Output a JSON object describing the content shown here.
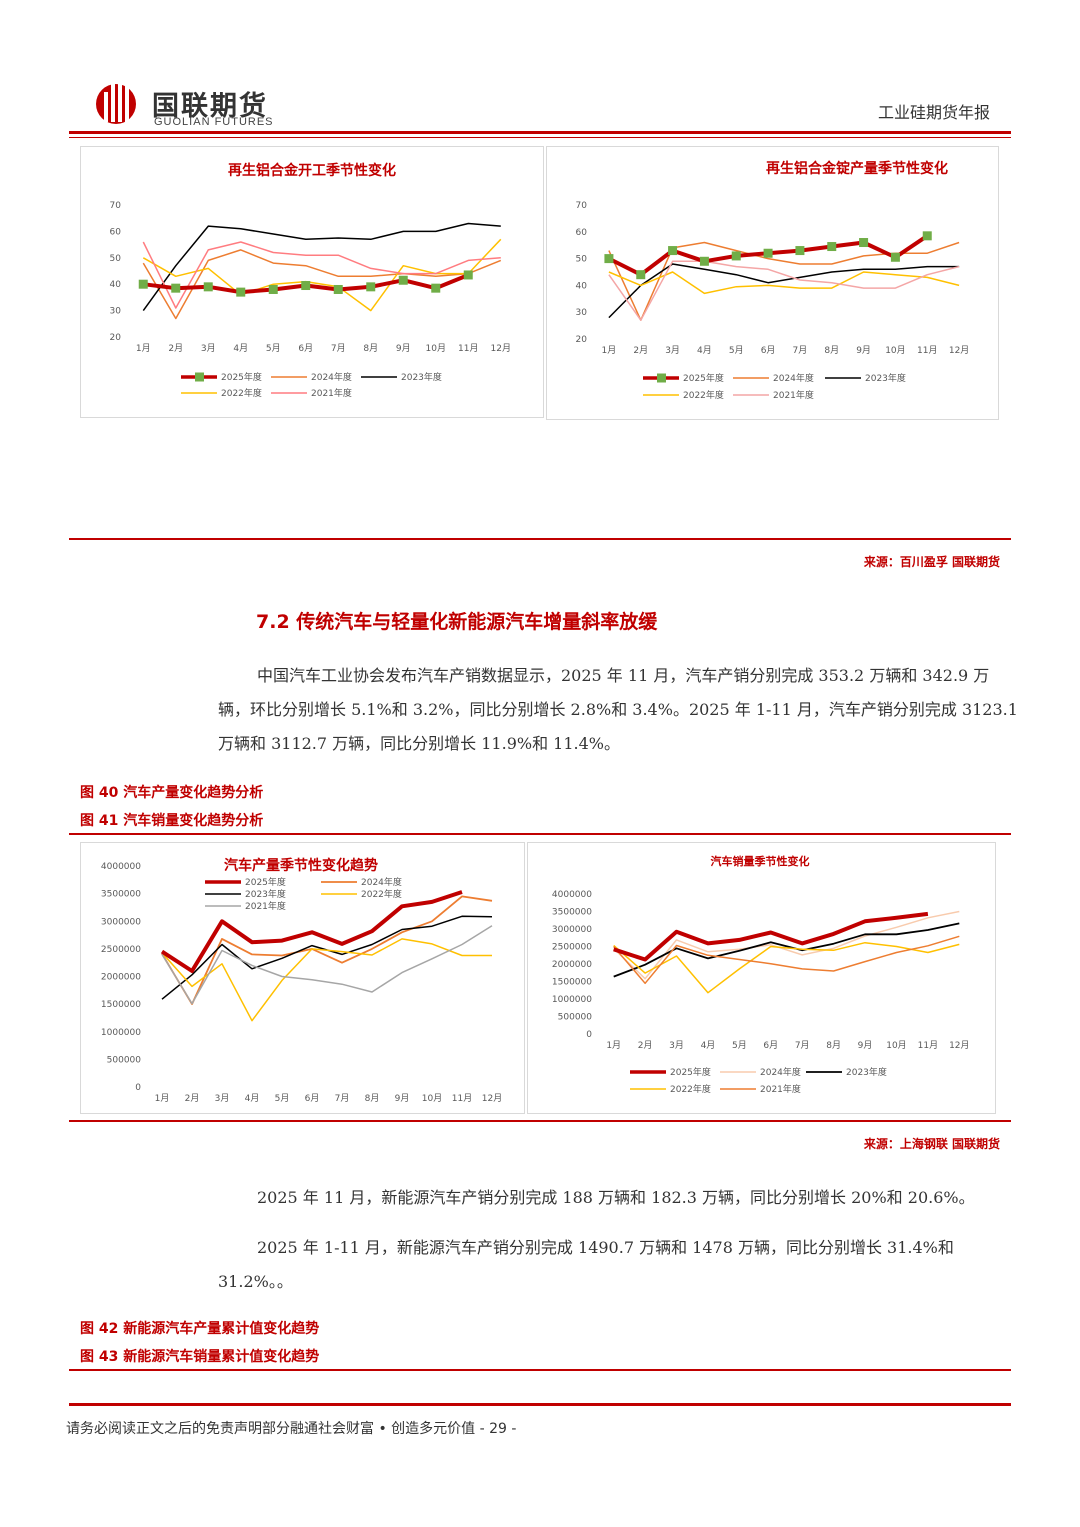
{
  "header": {
    "brand_cn": "国联期货",
    "brand_en": "GUOLIAN FUTURES",
    "doc_title": "工业硅期货年报"
  },
  "colors": {
    "accent": "#c00000",
    "s2025": "#c00000",
    "s2024": "#ed7d31",
    "s2023": "#000000",
    "s2022": "#ffc000",
    "s2021": "#ff7c80",
    "marker": "#70ad47",
    "gray": "#a6a6a6",
    "peach": "#f8cbad"
  },
  "source_top": "来源：百川盈孚  国联期货",
  "section_heading": "7.2 传统汽车与轻量化新能源汽车增量斜率放缓",
  "paragraph1": "中国汽车工业协会发布汽车产销数据显示，2025 年 11 月，汽车产销分别完成 353.2 万辆和 342.9 万辆，环比分别增长 5.1%和 3.2%，同比分别增长 2.8%和 3.4%。2025 年 1-11 月，汽车产销分别完成 3123.1 万辆和 3112.7 万辆，同比分别增长 11.9%和 11.4%。",
  "fig40": "图  40 汽车产量变化趋势分析",
  "fig41": "图  41  汽车销量变化趋势分析",
  "source_mid": "来源：上海钢联  国联期货",
  "paragraph2": "2025 年 11 月，新能源汽车产销分别完成 188 万辆和 182.3 万辆，同比分别增长 20%和 20.6%。",
  "paragraph3": "2025 年 1-11 月，新能源汽车产销分别完成 1490.7 万辆和 1478 万辆，同比分别增长 31.4%和 31.2%。。",
  "fig42": "图  42 新能源汽车产量累计值变化趋势",
  "fig43": "图  43 新能源汽车销量累计值变化趋势",
  "footer": "请务必阅读正文之后的免责声明部分融通社会财富 • 创造多元价值 - 29 -",
  "chart_data": [
    {
      "type": "line",
      "title": "再生铝合金开工季节性变化",
      "categories": [
        "1月",
        "2月",
        "3月",
        "4月",
        "5月",
        "6月",
        "7月",
        "8月",
        "9月",
        "10月",
        "11月",
        "12月"
      ],
      "ylim": [
        20,
        70
      ],
      "yticks": [
        20,
        30,
        40,
        50,
        60,
        70
      ],
      "series": [
        {
          "name": "2025年度",
          "color": "#c00000",
          "width": 4,
          "markers": true,
          "values": [
            40,
            38.5,
            39,
            37,
            38,
            39.5,
            38,
            39,
            41.5,
            38.5,
            43.5,
            null
          ]
        },
        {
          "name": "2024年度",
          "color": "#ed7d31",
          "width": 1.5,
          "values": [
            48,
            27,
            49,
            53,
            48,
            47,
            43,
            43,
            44,
            43,
            44,
            49
          ]
        },
        {
          "name": "2023年度",
          "color": "#000000",
          "width": 1.5,
          "values": [
            30,
            47,
            62,
            61,
            59,
            57,
            57.5,
            57,
            60,
            60,
            63,
            62
          ]
        },
        {
          "name": "2022年度",
          "color": "#ffc000",
          "width": 1.5,
          "values": [
            50,
            43,
            46,
            36,
            40,
            41,
            39,
            30,
            47,
            44,
            44,
            57
          ]
        },
        {
          "name": "2021年度",
          "color": "#ff7c80",
          "width": 1.5,
          "values": [
            56,
            31,
            53,
            56,
            52,
            51,
            51,
            46,
            44,
            44,
            49,
            50
          ]
        }
      ]
    },
    {
      "type": "line",
      "title": "再生铝合金锭产量季节性变化",
      "categories": [
        "1月",
        "2月",
        "3月",
        "4月",
        "5月",
        "6月",
        "7月",
        "8月",
        "9月",
        "10月",
        "11月",
        "12月"
      ],
      "ylim": [
        20,
        70
      ],
      "yticks": [
        20,
        30,
        40,
        50,
        60,
        70
      ],
      "series": [
        {
          "name": "2025年度",
          "color": "#c00000",
          "width": 4,
          "markers": true,
          "values": [
            50,
            44,
            53,
            49,
            51,
            52,
            53,
            54.5,
            56,
            50.5,
            58.5,
            null
          ]
        },
        {
          "name": "2024年度",
          "color": "#ed7d31",
          "width": 1.5,
          "values": [
            53,
            27,
            54,
            56,
            53,
            50,
            48,
            48,
            51,
            52,
            52,
            56
          ]
        },
        {
          "name": "2023年度",
          "color": "#000000",
          "width": 1.5,
          "values": [
            28,
            40,
            48,
            46,
            44,
            41,
            43,
            45,
            46,
            46,
            47,
            47
          ]
        },
        {
          "name": "2022年度",
          "color": "#ffc000",
          "width": 1.5,
          "values": [
            45,
            40,
            45,
            37,
            39.5,
            40,
            39,
            39,
            45,
            44,
            43,
            40
          ]
        },
        {
          "name": "2021年度",
          "color": "#f4a6a6",
          "width": 1.5,
          "values": [
            44,
            27,
            49,
            49,
            47,
            46,
            42,
            41,
            39,
            39,
            44,
            47
          ]
        }
      ]
    },
    {
      "type": "line",
      "title": "汽车产量季节性变化趋势",
      "categories": [
        "1月",
        "2月",
        "3月",
        "4月",
        "5月",
        "6月",
        "7月",
        "8月",
        "9月",
        "10月",
        "11月",
        "12月"
      ],
      "ylim": [
        0,
        4000000
      ],
      "yticks": [
        0,
        500000,
        1000000,
        1500000,
        2000000,
        2500000,
        3000000,
        3500000,
        4000000
      ],
      "series": [
        {
          "name": "2025年度",
          "color": "#c00000",
          "width": 4,
          "values": [
            2450000,
            2100000,
            3000000,
            2620000,
            2650000,
            2800000,
            2590000,
            2820000,
            3270000,
            3350000,
            3530000,
            null
          ]
        },
        {
          "name": "2024年度",
          "color": "#ed7d31",
          "width": 1.8,
          "values": [
            2410000,
            1500000,
            2680000,
            2400000,
            2380000,
            2500000,
            2250000,
            2500000,
            2800000,
            3000000,
            3450000,
            3370000
          ]
        },
        {
          "name": "2023年度",
          "color": "#000000",
          "width": 1.5,
          "values": [
            1590000,
            2030000,
            2580000,
            2140000,
            2330000,
            2560000,
            2400000,
            2580000,
            2850000,
            2910000,
            3090000,
            3080000
          ]
        },
        {
          "name": "2022年度",
          "color": "#ffc000",
          "width": 1.5,
          "values": [
            2430000,
            1820000,
            2230000,
            1200000,
            1930000,
            2500000,
            2450000,
            2390000,
            2680000,
            2590000,
            2380000,
            2380000
          ]
        },
        {
          "name": "2021年度",
          "color": "#a6a6a6",
          "width": 1.5,
          "values": [
            2400000,
            1510000,
            2470000,
            2200000,
            2000000,
            1940000,
            1860000,
            1720000,
            2070000,
            2320000,
            2580000,
            2920000
          ]
        }
      ]
    },
    {
      "type": "line",
      "title": "汽车销量季节性变化",
      "categories": [
        "1月",
        "2月",
        "3月",
        "4月",
        "5月",
        "6月",
        "7月",
        "8月",
        "9月",
        "10月",
        "11月",
        "12月"
      ],
      "ylim": [
        0,
        4000000
      ],
      "yticks": [
        0,
        500000,
        1000000,
        1500000,
        2000000,
        2500000,
        3000000,
        3500000,
        4000000
      ],
      "series": [
        {
          "name": "2025年度",
          "color": "#c00000",
          "width": 4,
          "values": [
            2420000,
            2130000,
            2920000,
            2590000,
            2690000,
            2900000,
            2590000,
            2860000,
            3220000,
            3320000,
            3430000,
            null
          ]
        },
        {
          "name": "2024年度",
          "color": "#f8cbad",
          "width": 1.5,
          "values": [
            2440000,
            1580000,
            2690000,
            2350000,
            2420000,
            2550000,
            2260000,
            2450000,
            2800000,
            3050000,
            3320000,
            3500000
          ]
        },
        {
          "name": "2023年度",
          "color": "#000000",
          "width": 1.8,
          "values": [
            1640000,
            1980000,
            2450000,
            2160000,
            2380000,
            2620000,
            2390000,
            2580000,
            2850000,
            2850000,
            2970000,
            3160000
          ]
        },
        {
          "name": "2022年度",
          "color": "#ffc000",
          "width": 1.5,
          "values": [
            2530000,
            1740000,
            2230000,
            1180000,
            1860000,
            2500000,
            2420000,
            2390000,
            2610000,
            2500000,
            2330000,
            2560000
          ]
        },
        {
          "name": "2021年度",
          "color": "#ed7d31",
          "width": 1.5,
          "values": [
            2500000,
            1450000,
            2530000,
            2250000,
            2130000,
            2010000,
            1860000,
            1800000,
            2070000,
            2330000,
            2520000,
            2790000
          ]
        }
      ]
    }
  ]
}
